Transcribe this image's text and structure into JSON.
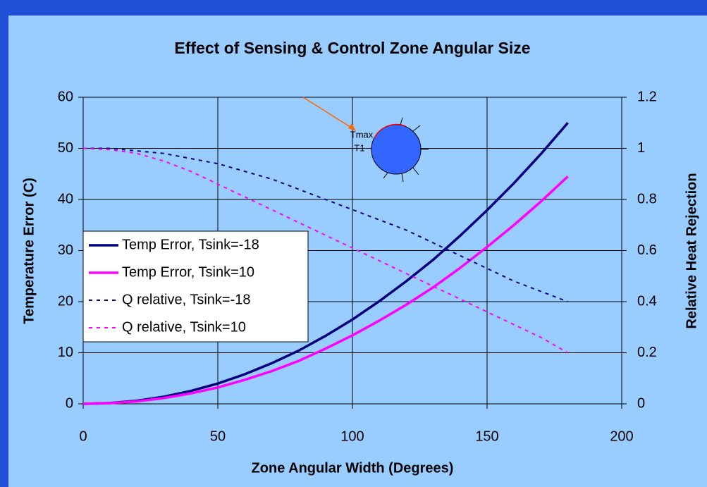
{
  "chart_data": {
    "type": "line",
    "title": "Effect of Sensing & Control Zone Angular Size",
    "x_label": "Zone Angular Width (Degrees)",
    "y_label": "Temperature Error (C)",
    "y2_label": "Relative Heat Rejection",
    "x": [
      0,
      10,
      20,
      30,
      40,
      50,
      60,
      70,
      80,
      90,
      100,
      110,
      120,
      130,
      140,
      150,
      160,
      170,
      180
    ],
    "series": [
      {
        "name": "Temp Error, Tsink=-18",
        "color": "#000080",
        "style": "solid",
        "values": [
          0,
          0.15,
          0.61,
          1.4,
          2.52,
          3.98,
          5.79,
          7.94,
          10.4,
          13.3,
          16.5,
          20.1,
          24.0,
          28.2,
          32.9,
          37.9,
          43.2,
          48.9,
          55.0
        ]
      },
      {
        "name": "Temp Error, Tsink=10",
        "color": "#ff00ff",
        "style": "solid",
        "values": [
          0,
          0.12,
          0.49,
          1.13,
          2.04,
          3.2,
          4.7,
          6.4,
          8.4,
          10.8,
          13.4,
          16.3,
          19.4,
          22.8,
          26.6,
          30.7,
          35.0,
          39.6,
          44.5
        ]
      },
      {
        "name": "Q relative, Tsink=-18",
        "color": "#000080",
        "style": "dashed",
        "axis": "y2",
        "values": [
          1,
          1,
          0.99,
          0.98,
          0.96,
          0.94,
          0.91,
          0.88,
          0.84,
          0.8,
          0.76,
          0.72,
          0.68,
          0.63,
          0.58,
          0.53,
          0.48,
          0.44,
          0.4
        ]
      },
      {
        "name": "Q relative, Tsink=10",
        "color": "#ff00ff",
        "style": "dashed",
        "axis": "y2",
        "values": [
          1,
          0.995,
          0.98,
          0.95,
          0.91,
          0.86,
          0.81,
          0.76,
          0.71,
          0.66,
          0.61,
          0.56,
          0.51,
          0.46,
          0.41,
          0.36,
          0.31,
          0.26,
          0.2
        ]
      }
    ],
    "xlim": [
      0,
      200
    ],
    "xticks": [
      0,
      50,
      100,
      150,
      200
    ],
    "ylim": [
      0,
      60
    ],
    "yticks": [
      0,
      10,
      20,
      30,
      40,
      50,
      60
    ],
    "y2lim": [
      0,
      1.2
    ],
    "y2ticks": [
      0,
      0.2,
      0.4,
      0.6,
      0.8,
      1,
      1.2
    ],
    "grid": true,
    "legend": "left",
    "annotations": [
      "Tmax",
      "T1"
    ]
  }
}
